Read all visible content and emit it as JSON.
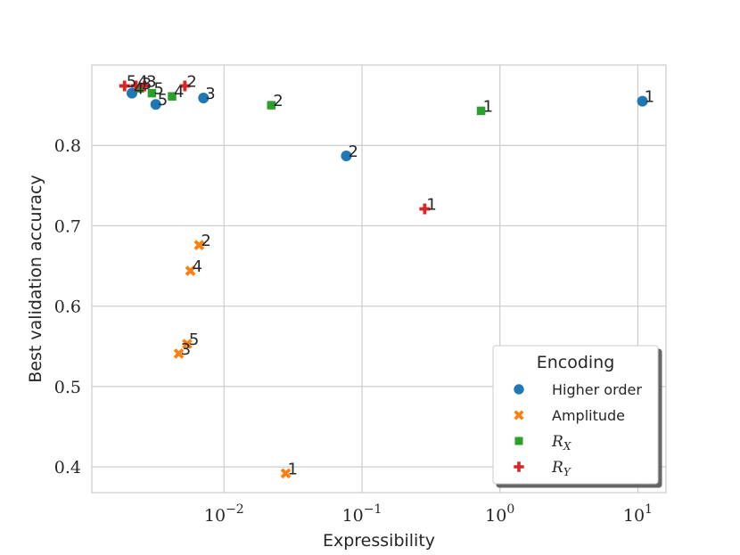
{
  "chart_data": {
    "type": "scatter",
    "xscale": "log",
    "xlim": [
      0.0011,
      16
    ],
    "ylim": [
      0.368,
      0.9
    ],
    "xlabel": "Expressibility",
    "ylabel": "Best validation accuracy",
    "grid": true,
    "x_ticks": [
      {
        "value": 0.01,
        "base": "10",
        "exp": "−2"
      },
      {
        "value": 0.1,
        "base": "10",
        "exp": "−1"
      },
      {
        "value": 1,
        "base": "10",
        "exp": "0"
      },
      {
        "value": 10,
        "base": "10",
        "exp": "1"
      }
    ],
    "y_ticks": [
      {
        "value": 0.4,
        "label": "0.4"
      },
      {
        "value": 0.5,
        "label": "0.5"
      },
      {
        "value": 0.6,
        "label": "0.6"
      },
      {
        "value": 0.7,
        "label": "0.7"
      },
      {
        "value": 0.8,
        "label": "0.8"
      }
    ],
    "legend": {
      "title": "Encoding",
      "position": "bottom-right",
      "entries": [
        {
          "series": "higher_order",
          "label": "Higher order",
          "math": false
        },
        {
          "series": "amplitude",
          "label": "Amplitude",
          "math": false
        },
        {
          "series": "rx",
          "label": "R",
          "sub": "X",
          "math": true
        },
        {
          "series": "ry",
          "label": "R",
          "sub": "Y",
          "math": true
        }
      ]
    },
    "series": [
      {
        "id": "higher_order",
        "name": "Higher order",
        "marker": "circle",
        "color": "#1f77b4",
        "points": [
          {
            "x": 10.8,
            "y": 0.855,
            "label": "1"
          },
          {
            "x": 0.077,
            "y": 0.787,
            "label": "2"
          },
          {
            "x": 0.0071,
            "y": 0.859,
            "label": "3"
          },
          {
            "x": 0.00215,
            "y": 0.865,
            "label": "4"
          },
          {
            "x": 0.0032,
            "y": 0.851,
            "label": "5"
          }
        ]
      },
      {
        "id": "amplitude",
        "name": "Amplitude",
        "marker": "x",
        "color": "#ff7f0e",
        "points": [
          {
            "x": 0.028,
            "y": 0.392,
            "label": "1"
          },
          {
            "x": 0.0066,
            "y": 0.676,
            "label": "2"
          },
          {
            "x": 0.0047,
            "y": 0.541,
            "label": "3"
          },
          {
            "x": 0.0057,
            "y": 0.644,
            "label": "4"
          },
          {
            "x": 0.0054,
            "y": 0.553,
            "label": "5"
          }
        ]
      },
      {
        "id": "rx",
        "name": "R_X",
        "marker": "square",
        "color": "#2ca02c",
        "points": [
          {
            "x": 0.73,
            "y": 0.843,
            "label": "1"
          },
          {
            "x": 0.022,
            "y": 0.85,
            "label": "2"
          },
          {
            "x": 0.00245,
            "y": 0.871,
            "label": "3"
          },
          {
            "x": 0.0042,
            "y": 0.861,
            "label": "4"
          },
          {
            "x": 0.003,
            "y": 0.865,
            "label": "5"
          }
        ]
      },
      {
        "id": "ry",
        "name": "R_Y",
        "marker": "plus",
        "color": "#d62728",
        "points": [
          {
            "x": 0.285,
            "y": 0.721,
            "label": "1"
          },
          {
            "x": 0.0052,
            "y": 0.874,
            "label": "2"
          },
          {
            "x": 0.00265,
            "y": 0.874,
            "label": "3"
          },
          {
            "x": 0.0023,
            "y": 0.874,
            "label": "4"
          },
          {
            "x": 0.0019,
            "y": 0.874,
            "label": "5"
          }
        ]
      }
    ]
  }
}
